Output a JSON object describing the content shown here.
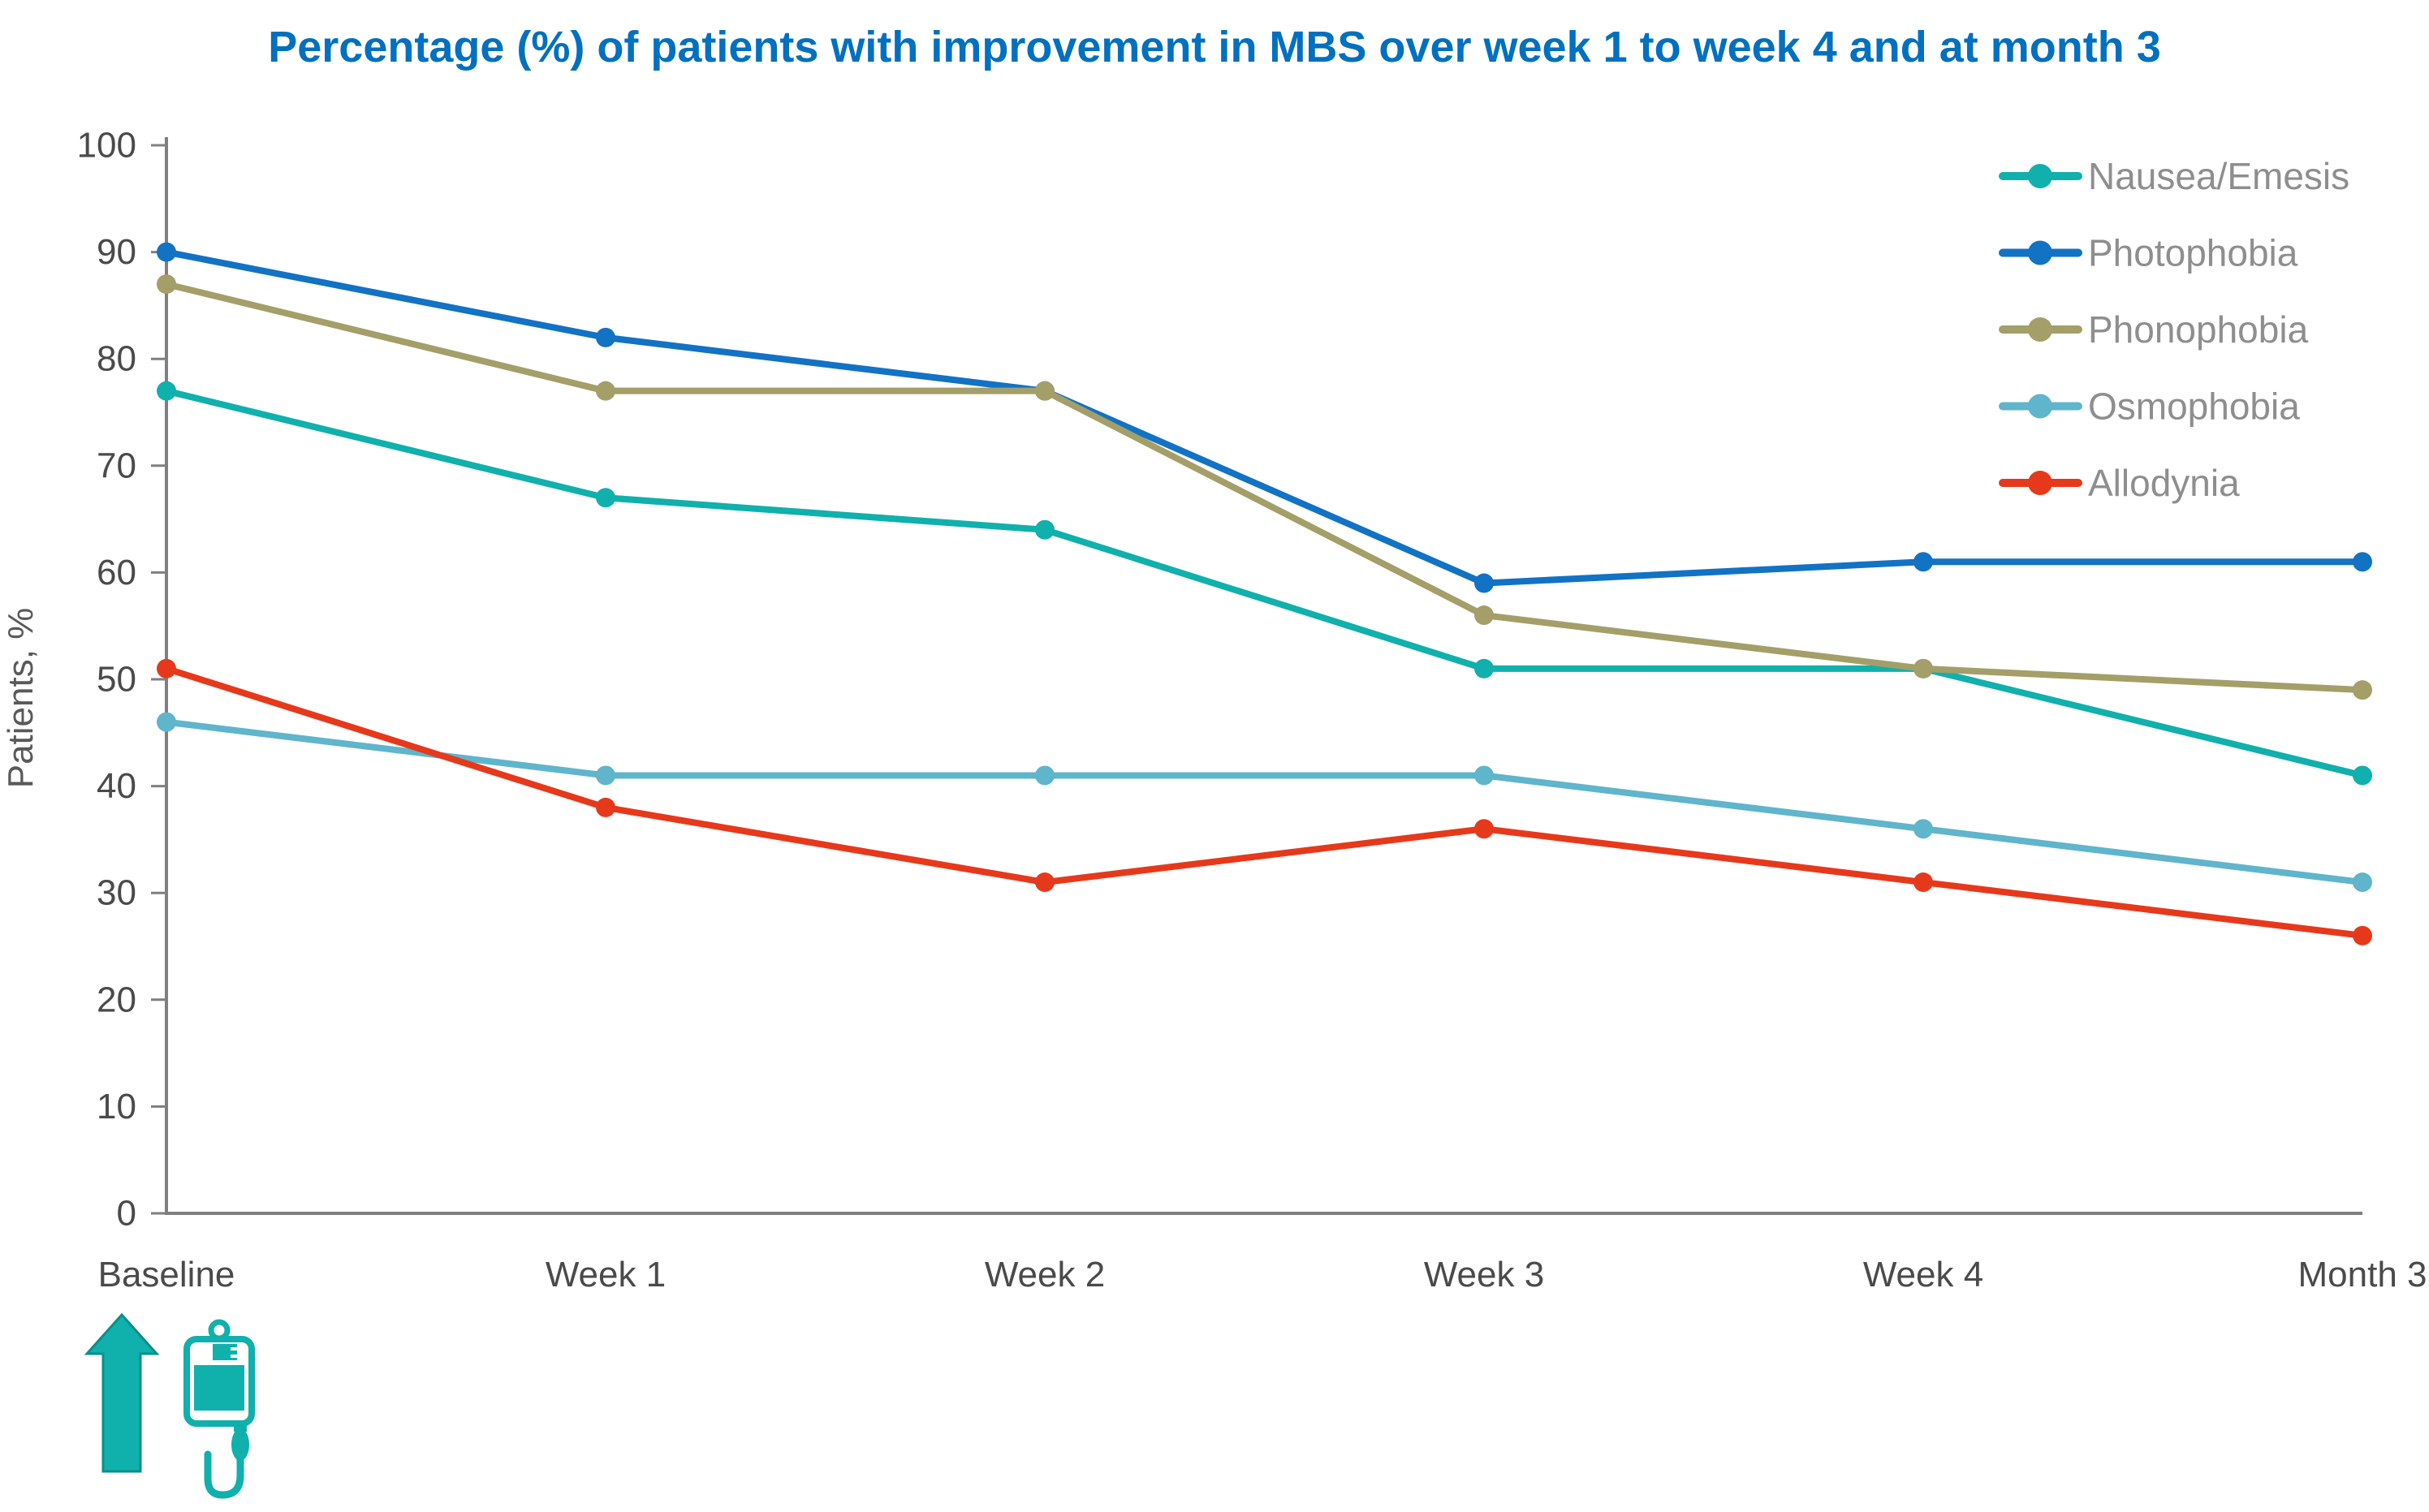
{
  "chart_data": {
    "type": "line",
    "title": "Percentage (%) of patients with improvement in MBS over week 1 to week 4 and at month 3",
    "ylabel": "Patients, %",
    "xlabel": "",
    "categories": [
      "Baseline",
      "Week 1",
      "Week 2",
      "Week 3",
      "Week 4",
      "Month 3"
    ],
    "series": [
      {
        "name": "Nausea/Emesis",
        "color": "#10b0ac",
        "values": [
          77,
          67,
          64,
          51,
          51,
          41
        ]
      },
      {
        "name": "Photophobia",
        "color": "#1272c4",
        "values": [
          90,
          82,
          77,
          59,
          61,
          61
        ]
      },
      {
        "name": "Phonophobia",
        "color": "#a49e68",
        "values": [
          87,
          77,
          77,
          56,
          51,
          49
        ]
      },
      {
        "name": "Osmophobia",
        "color": "#5fb5cb",
        "values": [
          46,
          41,
          41,
          41,
          36,
          31
        ]
      },
      {
        "name": "Allodynia",
        "color": "#e6391b",
        "values": [
          51,
          38,
          31,
          36,
          31,
          26
        ]
      }
    ],
    "ylim": [
      0,
      100
    ],
    "yticks": [
      0,
      10,
      20,
      30,
      40,
      50,
      60,
      70,
      80,
      90,
      100
    ],
    "grid": false,
    "legend_position": "top-right"
  },
  "colors": {
    "title": "#0070c0",
    "axis": "#7f7f7f",
    "tick_label": "#4a4a4a",
    "legend_text": "#8e8e8e",
    "icon": "#10b0ac"
  },
  "icons": {
    "arrow": "up-arrow-icon",
    "iv_bag": "iv-bag-icon"
  }
}
